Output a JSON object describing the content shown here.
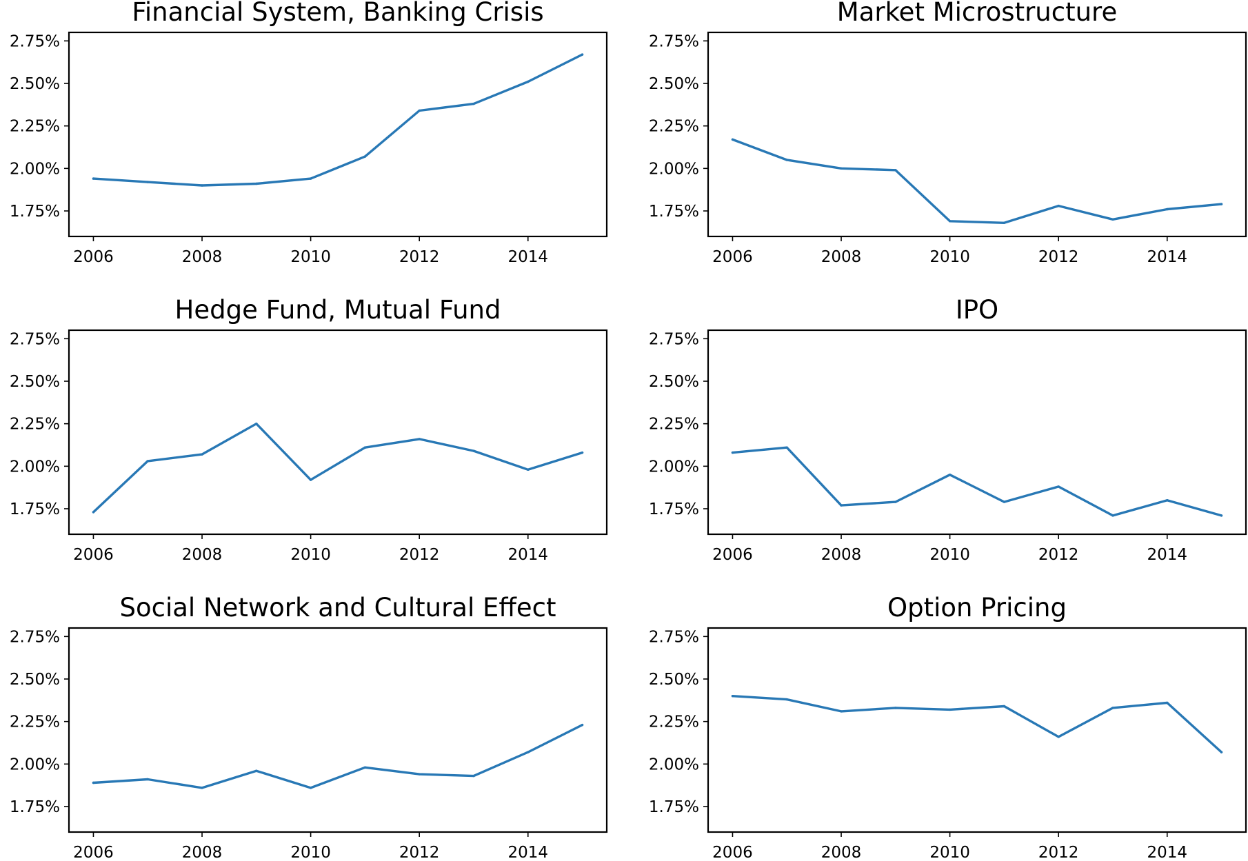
{
  "chart_data": [
    {
      "type": "line",
      "title": "Financial System, Banking Crisis",
      "x": [
        2006,
        2007,
        2008,
        2009,
        2010,
        2011,
        2012,
        2013,
        2014,
        2015
      ],
      "values": [
        1.94,
        1.92,
        1.9,
        1.91,
        1.94,
        2.07,
        2.34,
        2.38,
        2.51,
        2.67
      ],
      "xticks": [
        "2006",
        "2008",
        "2010",
        "2012",
        "2014"
      ],
      "yticks": [
        "1.75%",
        "2.00%",
        "2.25%",
        "2.50%",
        "2.75%"
      ],
      "xlim": [
        2005.55,
        2015.45
      ],
      "ylim": [
        1.6,
        2.8
      ],
      "grid": false
    },
    {
      "type": "line",
      "title": "Market Microstructure",
      "x": [
        2006,
        2007,
        2008,
        2009,
        2010,
        2011,
        2012,
        2013,
        2014,
        2015
      ],
      "values": [
        2.17,
        2.05,
        2.0,
        1.99,
        1.69,
        1.68,
        1.78,
        1.7,
        1.76,
        1.79
      ],
      "xticks": [
        "2006",
        "2008",
        "2010",
        "2012",
        "2014"
      ],
      "yticks": [
        "1.75%",
        "2.00%",
        "2.25%",
        "2.50%",
        "2.75%"
      ],
      "xlim": [
        2005.55,
        2015.45
      ],
      "ylim": [
        1.6,
        2.8
      ],
      "grid": false
    },
    {
      "type": "line",
      "title": "Hedge Fund, Mutual Fund",
      "x": [
        2006,
        2007,
        2008,
        2009,
        2010,
        2011,
        2012,
        2013,
        2014,
        2015
      ],
      "values": [
        1.73,
        2.03,
        2.07,
        2.25,
        1.92,
        2.11,
        2.16,
        2.09,
        1.98,
        2.08
      ],
      "xticks": [
        "2006",
        "2008",
        "2010",
        "2012",
        "2014"
      ],
      "yticks": [
        "1.75%",
        "2.00%",
        "2.25%",
        "2.50%",
        "2.75%"
      ],
      "xlim": [
        2005.55,
        2015.45
      ],
      "ylim": [
        1.6,
        2.8
      ],
      "grid": false
    },
    {
      "type": "line",
      "title": "IPO",
      "x": [
        2006,
        2007,
        2008,
        2009,
        2010,
        2011,
        2012,
        2013,
        2014,
        2015
      ],
      "values": [
        2.08,
        2.11,
        1.77,
        1.79,
        1.95,
        1.79,
        1.88,
        1.71,
        1.8,
        1.71
      ],
      "xticks": [
        "2006",
        "2008",
        "2010",
        "2012",
        "2014"
      ],
      "yticks": [
        "1.75%",
        "2.00%",
        "2.25%",
        "2.50%",
        "2.75%"
      ],
      "xlim": [
        2005.55,
        2015.45
      ],
      "ylim": [
        1.6,
        2.8
      ],
      "grid": false
    },
    {
      "type": "line",
      "title": "Social Network and Cultural Effect",
      "x": [
        2006,
        2007,
        2008,
        2009,
        2010,
        2011,
        2012,
        2013,
        2014,
        2015
      ],
      "values": [
        1.89,
        1.91,
        1.86,
        1.96,
        1.86,
        1.98,
        1.94,
        1.93,
        2.07,
        2.23
      ],
      "xticks": [
        "2006",
        "2008",
        "2010",
        "2012",
        "2014"
      ],
      "yticks": [
        "1.75%",
        "2.00%",
        "2.25%",
        "2.50%",
        "2.75%"
      ],
      "xlim": [
        2005.55,
        2015.45
      ],
      "ylim": [
        1.6,
        2.8
      ],
      "grid": false
    },
    {
      "type": "line",
      "title": "Option Pricing",
      "x": [
        2006,
        2007,
        2008,
        2009,
        2010,
        2011,
        2012,
        2013,
        2014,
        2015
      ],
      "values": [
        2.4,
        2.38,
        2.31,
        2.33,
        2.32,
        2.34,
        2.16,
        2.33,
        2.36,
        2.07
      ],
      "xticks": [
        "2006",
        "2008",
        "2010",
        "2012",
        "2014"
      ],
      "yticks": [
        "1.75%",
        "2.00%",
        "2.25%",
        "2.50%",
        "2.75%"
      ],
      "xlim": [
        2005.55,
        2015.45
      ],
      "ylim": [
        1.6,
        2.8
      ],
      "grid": false
    }
  ],
  "style": {
    "line_color": "#2878b5",
    "axis_color": "#000000",
    "background": "#ffffff"
  }
}
